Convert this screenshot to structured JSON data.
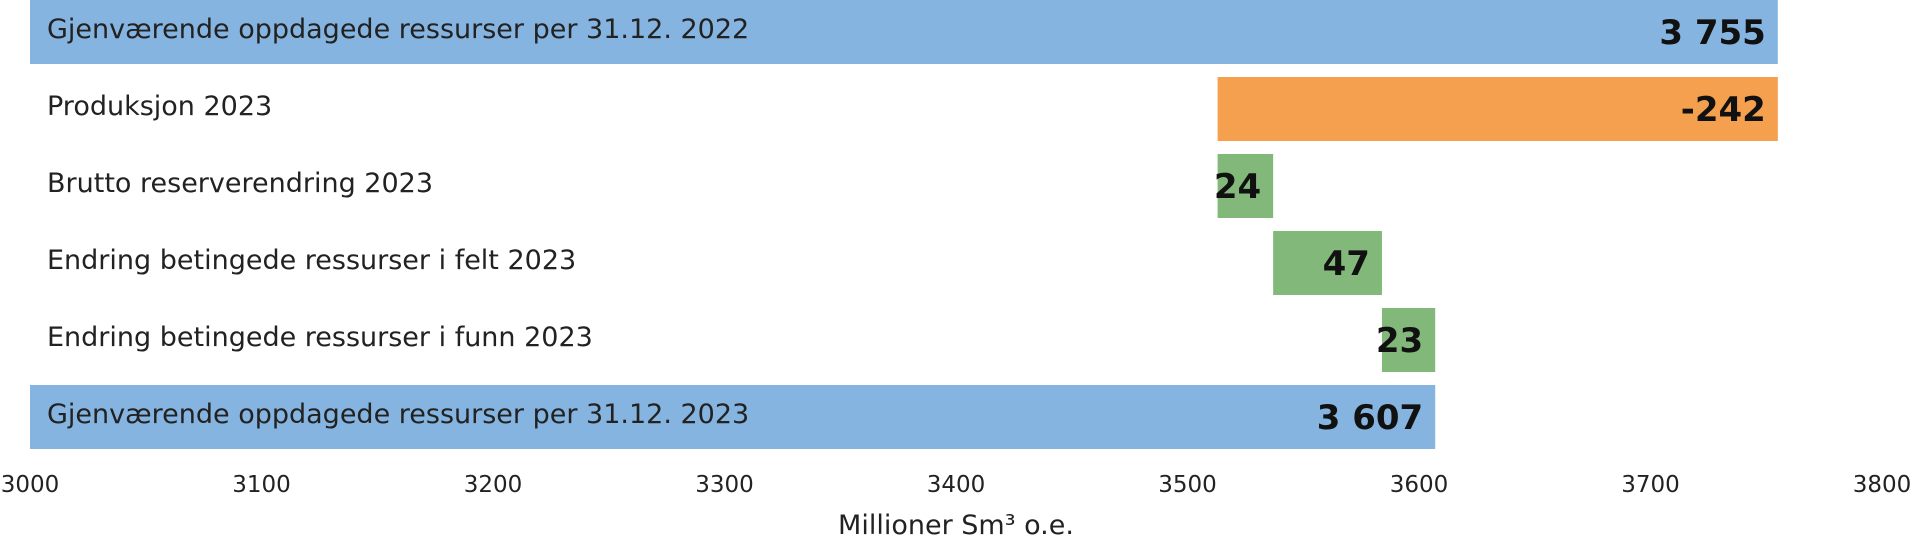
{
  "chart_data": {
    "type": "bar",
    "orientation": "horizontal",
    "subtype": "waterfall",
    "xlabel": "Millioner Sm³ o.e.",
    "xlim": [
      3000,
      3800
    ],
    "xticks": [
      3000,
      3100,
      3200,
      3300,
      3400,
      3500,
      3600,
      3700,
      3800
    ],
    "grid": false,
    "legend": "none",
    "colors": {
      "total": "#85b4e0",
      "decrease": "#f5a04e",
      "increase": "#82b97b"
    },
    "bars": [
      {
        "label": "Gjenværende oppdagede ressurser per 31.12. 2022",
        "start": 3000,
        "end": 3755,
        "value_label": "3 755",
        "kind": "total"
      },
      {
        "label": "Produksjon 2023",
        "start": 3513,
        "end": 3755,
        "value_label": "-242",
        "kind": "decrease"
      },
      {
        "label": "Brutto reserverendring 2023",
        "start": 3513,
        "end": 3537,
        "value_label": "24",
        "kind": "increase"
      },
      {
        "label": "Endring betingede ressurser i felt 2023",
        "start": 3537,
        "end": 3584,
        "value_label": "47",
        "kind": "increase"
      },
      {
        "label": "Endring betingede ressurser i funn 2023",
        "start": 3584,
        "end": 3607,
        "value_label": "23",
        "kind": "increase"
      },
      {
        "label": "Gjenværende oppdagede ressurser per 31.12. 2023",
        "start": 3000,
        "end": 3607,
        "value_label": "3 607",
        "kind": "total"
      }
    ]
  }
}
